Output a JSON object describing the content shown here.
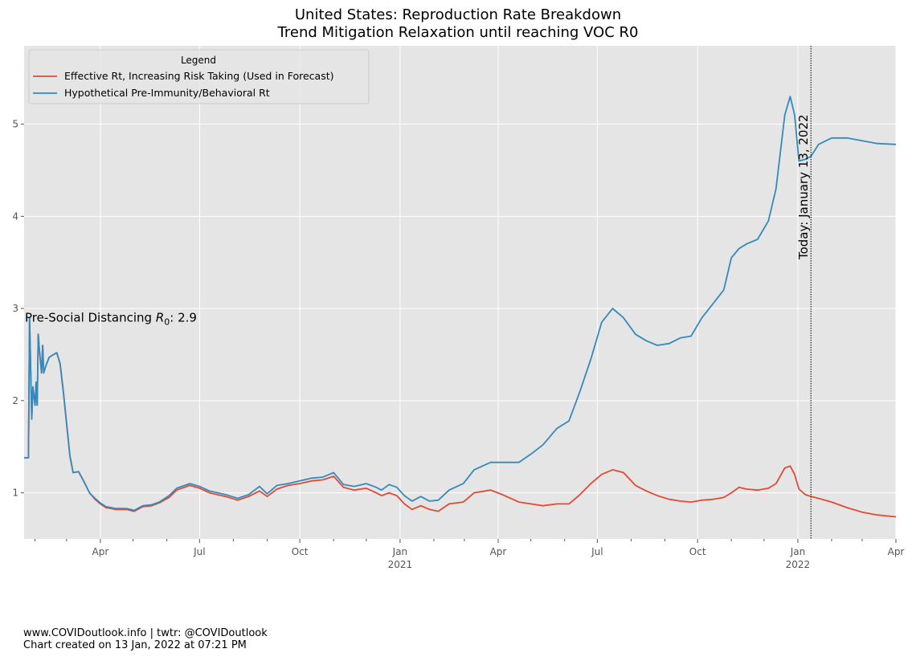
{
  "chart_data": {
    "type": "line",
    "title": "United States: Reproduction Rate Breakdown",
    "subtitle": "Trend Mitigation Relaxation until reaching VOC R0",
    "xlabel": "",
    "ylabel": "",
    "xlim": [
      "2020-01-22",
      "2022-04-01"
    ],
    "ylim": [
      0.5,
      5.85
    ],
    "yticks": [
      1,
      2,
      3,
      4,
      5
    ],
    "xticks": [
      {
        "date": "2020-04-01",
        "label": "Apr",
        "sublabel": ""
      },
      {
        "date": "2020-07-01",
        "label": "Jul",
        "sublabel": ""
      },
      {
        "date": "2020-10-01",
        "label": "Oct",
        "sublabel": ""
      },
      {
        "date": "2021-01-01",
        "label": "Jan",
        "sublabel": "2021"
      },
      {
        "date": "2021-04-01",
        "label": "Apr",
        "sublabel": ""
      },
      {
        "date": "2021-07-01",
        "label": "Jul",
        "sublabel": ""
      },
      {
        "date": "2021-10-01",
        "label": "Oct",
        "sublabel": ""
      },
      {
        "date": "2022-01-01",
        "label": "Jan",
        "sublabel": "2022"
      },
      {
        "date": "2022-04-01",
        "label": "Apr",
        "sublabel": ""
      }
    ],
    "grid": true,
    "legend": {
      "title": "Legend",
      "placement": "top-left"
    },
    "annotations": {
      "r0_label": "Pre-Social Distancing R",
      "r0_subscript": "0",
      "r0_value": ": 2.9",
      "r0_y": 2.9,
      "today_label": "Today: January 13, 2022",
      "today_date": "2022-01-13"
    },
    "series": [
      {
        "name": "Effective Rt, Increasing Risk Taking (Used in Forecast)",
        "color": "#E24A33",
        "points": [
          [
            "2020-01-22",
            1.38
          ],
          [
            "2020-01-26",
            1.38
          ],
          [
            "2020-01-27",
            2.9
          ],
          [
            "2020-01-29",
            1.8
          ],
          [
            "2020-01-30",
            2.15
          ],
          [
            "2020-02-01",
            1.95
          ],
          [
            "2020-02-02",
            2.2
          ],
          [
            "2020-02-03",
            1.95
          ],
          [
            "2020-02-04",
            2.72
          ],
          [
            "2020-02-05",
            2.55
          ],
          [
            "2020-02-07",
            2.3
          ],
          [
            "2020-02-08",
            2.6
          ],
          [
            "2020-02-09",
            2.3
          ],
          [
            "2020-02-11",
            2.38
          ],
          [
            "2020-02-14",
            2.47
          ],
          [
            "2020-02-18",
            2.5
          ],
          [
            "2020-02-21",
            2.52
          ],
          [
            "2020-02-24",
            2.4
          ],
          [
            "2020-02-27",
            2.1
          ],
          [
            "2020-03-01",
            1.75
          ],
          [
            "2020-03-04",
            1.4
          ],
          [
            "2020-03-07",
            1.22
          ],
          [
            "2020-03-12",
            1.23
          ],
          [
            "2020-03-17",
            1.12
          ],
          [
            "2020-03-22",
            1.0
          ],
          [
            "2020-03-27",
            0.93
          ],
          [
            "2020-04-01",
            0.88
          ],
          [
            "2020-04-06",
            0.84
          ],
          [
            "2020-04-15",
            0.82
          ],
          [
            "2020-04-25",
            0.82
          ],
          [
            "2020-05-02",
            0.8
          ],
          [
            "2020-05-10",
            0.85
          ],
          [
            "2020-05-18",
            0.86
          ],
          [
            "2020-05-25",
            0.89
          ],
          [
            "2020-06-03",
            0.95
          ],
          [
            "2020-06-10",
            1.03
          ],
          [
            "2020-06-22",
            1.08
          ],
          [
            "2020-07-01",
            1.05
          ],
          [
            "2020-07-10",
            1.0
          ],
          [
            "2020-07-25",
            0.96
          ],
          [
            "2020-08-05",
            0.92
          ],
          [
            "2020-08-15",
            0.96
          ],
          [
            "2020-08-25",
            1.02
          ],
          [
            "2020-09-01",
            0.96
          ],
          [
            "2020-09-10",
            1.04
          ],
          [
            "2020-09-20",
            1.08
          ],
          [
            "2020-10-01",
            1.1
          ],
          [
            "2020-10-12",
            1.13
          ],
          [
            "2020-10-22",
            1.14
          ],
          [
            "2020-11-01",
            1.18
          ],
          [
            "2020-11-10",
            1.06
          ],
          [
            "2020-11-20",
            1.03
          ],
          [
            "2020-12-01",
            1.05
          ],
          [
            "2020-12-10",
            1.0
          ],
          [
            "2020-12-15",
            0.97
          ],
          [
            "2020-12-22",
            1.0
          ],
          [
            "2020-12-29",
            0.97
          ],
          [
            "2021-01-05",
            0.88
          ],
          [
            "2021-01-12",
            0.82
          ],
          [
            "2021-01-20",
            0.86
          ],
          [
            "2021-01-28",
            0.82
          ],
          [
            "2021-02-05",
            0.8
          ],
          [
            "2021-02-15",
            0.88
          ],
          [
            "2021-02-28",
            0.9
          ],
          [
            "2021-03-10",
            1.0
          ],
          [
            "2021-03-25",
            1.03
          ],
          [
            "2021-04-05",
            0.98
          ],
          [
            "2021-04-20",
            0.9
          ],
          [
            "2021-05-01",
            0.88
          ],
          [
            "2021-05-12",
            0.86
          ],
          [
            "2021-05-25",
            0.88
          ],
          [
            "2021-06-05",
            0.88
          ],
          [
            "2021-06-15",
            0.98
          ],
          [
            "2021-06-25",
            1.1
          ],
          [
            "2021-07-05",
            1.2
          ],
          [
            "2021-07-15",
            1.25
          ],
          [
            "2021-07-25",
            1.22
          ],
          [
            "2021-08-05",
            1.08
          ],
          [
            "2021-08-15",
            1.02
          ],
          [
            "2021-08-25",
            0.97
          ],
          [
            "2021-09-05",
            0.93
          ],
          [
            "2021-09-15",
            0.91
          ],
          [
            "2021-09-25",
            0.9
          ],
          [
            "2021-10-05",
            0.92
          ],
          [
            "2021-10-15",
            0.93
          ],
          [
            "2021-10-25",
            0.95
          ],
          [
            "2021-11-01",
            1.0
          ],
          [
            "2021-11-08",
            1.06
          ],
          [
            "2021-11-15",
            1.04
          ],
          [
            "2021-11-25",
            1.03
          ],
          [
            "2021-12-05",
            1.05
          ],
          [
            "2021-12-12",
            1.1
          ],
          [
            "2021-12-20",
            1.27
          ],
          [
            "2021-12-25",
            1.29
          ],
          [
            "2021-12-29",
            1.2
          ],
          [
            "2022-01-02",
            1.04
          ],
          [
            "2022-01-08",
            0.98
          ],
          [
            "2022-01-13",
            0.96
          ],
          [
            "2022-01-20",
            0.94
          ],
          [
            "2022-02-01",
            0.9
          ],
          [
            "2022-02-15",
            0.84
          ],
          [
            "2022-03-01",
            0.79
          ],
          [
            "2022-03-15",
            0.76
          ],
          [
            "2022-04-01",
            0.74
          ]
        ]
      },
      {
        "name": "Hypothetical Pre-Immunity/Behavioral Rt",
        "color": "#348ABD",
        "points": [
          [
            "2020-01-22",
            1.38
          ],
          [
            "2020-01-26",
            1.38
          ],
          [
            "2020-01-27",
            2.9
          ],
          [
            "2020-01-29",
            1.8
          ],
          [
            "2020-01-30",
            2.15
          ],
          [
            "2020-02-01",
            1.95
          ],
          [
            "2020-02-02",
            2.2
          ],
          [
            "2020-02-03",
            1.95
          ],
          [
            "2020-02-04",
            2.72
          ],
          [
            "2020-02-05",
            2.55
          ],
          [
            "2020-02-07",
            2.3
          ],
          [
            "2020-02-08",
            2.6
          ],
          [
            "2020-02-09",
            2.3
          ],
          [
            "2020-02-11",
            2.38
          ],
          [
            "2020-02-14",
            2.47
          ],
          [
            "2020-02-18",
            2.5
          ],
          [
            "2020-02-21",
            2.52
          ],
          [
            "2020-02-24",
            2.4
          ],
          [
            "2020-02-27",
            2.1
          ],
          [
            "2020-03-01",
            1.75
          ],
          [
            "2020-03-04",
            1.4
          ],
          [
            "2020-03-07",
            1.22
          ],
          [
            "2020-03-12",
            1.23
          ],
          [
            "2020-03-17",
            1.12
          ],
          [
            "2020-03-22",
            1.0
          ],
          [
            "2020-03-27",
            0.94
          ],
          [
            "2020-04-01",
            0.89
          ],
          [
            "2020-04-06",
            0.85
          ],
          [
            "2020-04-15",
            0.83
          ],
          [
            "2020-04-25",
            0.83
          ],
          [
            "2020-05-02",
            0.81
          ],
          [
            "2020-05-10",
            0.86
          ],
          [
            "2020-05-18",
            0.87
          ],
          [
            "2020-05-25",
            0.9
          ],
          [
            "2020-06-03",
            0.97
          ],
          [
            "2020-06-10",
            1.05
          ],
          [
            "2020-06-22",
            1.1
          ],
          [
            "2020-07-01",
            1.07
          ],
          [
            "2020-07-10",
            1.02
          ],
          [
            "2020-07-25",
            0.98
          ],
          [
            "2020-08-05",
            0.94
          ],
          [
            "2020-08-15",
            0.98
          ],
          [
            "2020-08-25",
            1.07
          ],
          [
            "2020-09-01",
            0.99
          ],
          [
            "2020-09-10",
            1.08
          ],
          [
            "2020-09-20",
            1.1
          ],
          [
            "2020-10-01",
            1.13
          ],
          [
            "2020-10-12",
            1.16
          ],
          [
            "2020-10-22",
            1.17
          ],
          [
            "2020-11-01",
            1.22
          ],
          [
            "2020-11-10",
            1.09
          ],
          [
            "2020-11-20",
            1.07
          ],
          [
            "2020-12-01",
            1.1
          ],
          [
            "2020-12-10",
            1.06
          ],
          [
            "2020-12-15",
            1.03
          ],
          [
            "2020-12-22",
            1.09
          ],
          [
            "2020-12-29",
            1.06
          ],
          [
            "2021-01-05",
            0.97
          ],
          [
            "2021-01-12",
            0.91
          ],
          [
            "2021-01-20",
            0.96
          ],
          [
            "2021-01-28",
            0.91
          ],
          [
            "2021-02-05",
            0.92
          ],
          [
            "2021-02-15",
            1.03
          ],
          [
            "2021-02-28",
            1.1
          ],
          [
            "2021-03-10",
            1.25
          ],
          [
            "2021-03-25",
            1.33
          ],
          [
            "2021-04-05",
            1.33
          ],
          [
            "2021-04-20",
            1.33
          ],
          [
            "2021-05-01",
            1.42
          ],
          [
            "2021-05-12",
            1.52
          ],
          [
            "2021-05-25",
            1.7
          ],
          [
            "2021-06-05",
            1.78
          ],
          [
            "2021-06-15",
            2.1
          ],
          [
            "2021-06-25",
            2.45
          ],
          [
            "2021-07-05",
            2.85
          ],
          [
            "2021-07-15",
            3.0
          ],
          [
            "2021-07-25",
            2.9
          ],
          [
            "2021-08-05",
            2.72
          ],
          [
            "2021-08-15",
            2.65
          ],
          [
            "2021-08-25",
            2.6
          ],
          [
            "2021-09-05",
            2.62
          ],
          [
            "2021-09-15",
            2.68
          ],
          [
            "2021-09-25",
            2.7
          ],
          [
            "2021-10-05",
            2.9
          ],
          [
            "2021-10-15",
            3.05
          ],
          [
            "2021-10-25",
            3.2
          ],
          [
            "2021-11-01",
            3.55
          ],
          [
            "2021-11-08",
            3.65
          ],
          [
            "2021-11-15",
            3.7
          ],
          [
            "2021-11-25",
            3.75
          ],
          [
            "2021-12-05",
            3.95
          ],
          [
            "2021-12-12",
            4.3
          ],
          [
            "2021-12-20",
            5.1
          ],
          [
            "2021-12-25",
            5.3
          ],
          [
            "2021-12-29",
            5.1
          ],
          [
            "2022-01-02",
            4.6
          ],
          [
            "2022-01-08",
            4.62
          ],
          [
            "2022-01-13",
            4.65
          ],
          [
            "2022-01-20",
            4.78
          ],
          [
            "2022-02-01",
            4.85
          ],
          [
            "2022-02-15",
            4.85
          ],
          [
            "2022-03-01",
            4.82
          ],
          [
            "2022-03-15",
            4.79
          ],
          [
            "2022-04-01",
            4.78
          ]
        ]
      }
    ]
  },
  "footer": {
    "line1": "www.COVIDoutlook.info | twtr: @COVIDoutlook",
    "line2": "Chart created on 13 Jan, 2022 at 07:21 PM"
  }
}
